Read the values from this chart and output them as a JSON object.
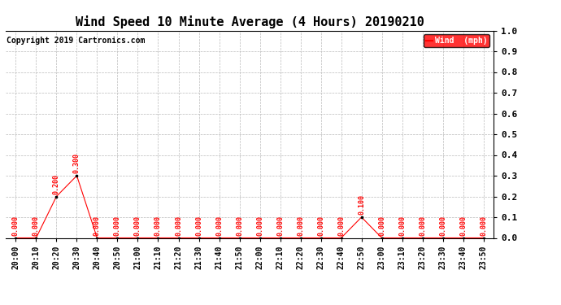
{
  "title": "Wind Speed 10 Minute Average (4 Hours) 20190210",
  "copyright": "Copyright 2019 Cartronics.com",
  "legend_label": "Wind  (mph)",
  "ylim": [
    0.0,
    1.0
  ],
  "yticks": [
    0.0,
    0.1,
    0.2,
    0.3,
    0.4,
    0.5,
    0.6,
    0.7,
    0.8,
    0.9,
    1.0
  ],
  "x_labels": [
    "20:00",
    "20:10",
    "20:20",
    "20:30",
    "20:40",
    "20:50",
    "21:00",
    "21:10",
    "21:20",
    "21:30",
    "21:40",
    "21:50",
    "22:00",
    "22:10",
    "22:20",
    "22:30",
    "22:40",
    "22:50",
    "23:00",
    "23:10",
    "23:20",
    "23:30",
    "23:40",
    "23:50"
  ],
  "wind_values": [
    0.0,
    0.0,
    0.2,
    0.3,
    0.0,
    0.0,
    0.0,
    0.0,
    0.0,
    0.0,
    0.0,
    0.0,
    0.0,
    0.0,
    0.0,
    0.0,
    0.0,
    0.1,
    0.0,
    0.0,
    0.0,
    0.0,
    0.0,
    0.0
  ],
  "line_color": "#FF0000",
  "marker_color": "#000000",
  "label_color": "#FF0000",
  "bg_color": "#FFFFFF",
  "grid_color": "#BBBBBB",
  "title_fontsize": 11,
  "tick_fontsize": 7,
  "label_fontsize": 6,
  "copyright_fontsize": 7
}
